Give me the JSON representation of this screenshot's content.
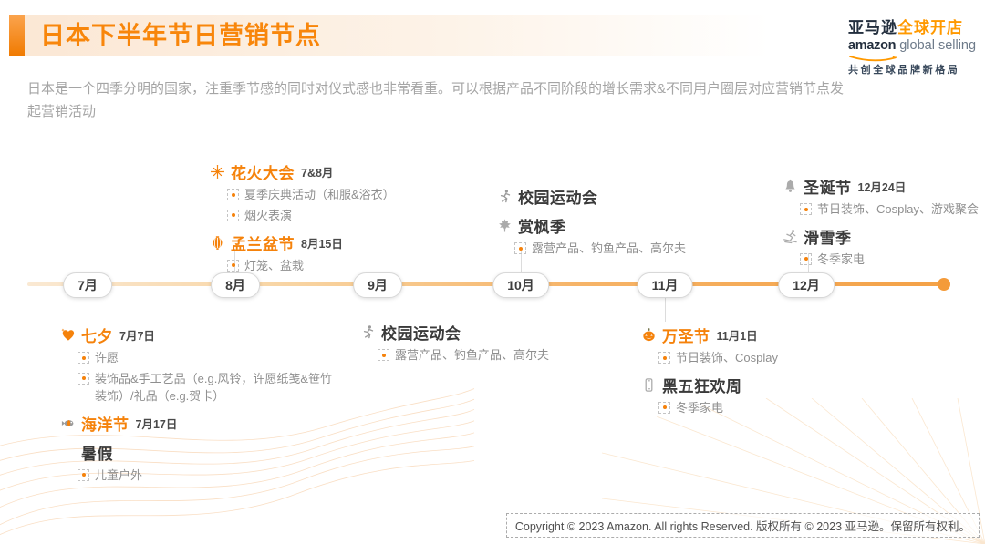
{
  "header": {
    "title": "日本下半年节日营销节点",
    "subtitle": "日本是一个四季分明的国家，注重季节感的同时对仪式感也非常看重。可以根据产品不同阶段的增长需求&不同用户圈层对应营销节点发起营销活动"
  },
  "logo": {
    "cn_dark": "亚马逊",
    "cn_orange": "全球开店",
    "en_bold": "amazon",
    "en_light": "global selling",
    "slogan": "共创全球品牌新格局",
    "smile_icon": "amazon-smile-icon"
  },
  "timeline": {
    "months": [
      "7月",
      "8月",
      "9月",
      "10月",
      "11月",
      "12月"
    ],
    "end_icon": "timeline-end-dot"
  },
  "events_above": [
    {
      "anchor_month": "8月",
      "events": [
        {
          "name": "花火大会",
          "date": "7&8月",
          "style": "orange",
          "icon": "fireworks-icon",
          "items": [
            "夏季庆典活动（和服&浴衣）",
            "烟火表演"
          ]
        },
        {
          "name": "孟兰盆节",
          "date": "8月15日",
          "style": "orange",
          "icon": "lantern-icon",
          "items": [
            "灯笼、盆栽"
          ]
        }
      ]
    },
    {
      "anchor_month": "10月",
      "events": [
        {
          "name": "校园运动会",
          "date": "",
          "style": "dark",
          "icon": "runner-icon",
          "items": []
        },
        {
          "name": "赏枫季",
          "date": "",
          "style": "dark",
          "icon": "maple-leaf-icon",
          "items": [
            "露营产品、钓鱼产品、高尔夫"
          ]
        }
      ]
    },
    {
      "anchor_month": "12月",
      "events": [
        {
          "name": "圣诞节",
          "date": "12月24日",
          "style": "dark",
          "icon": "bell-icon",
          "items": [
            "节日装饰、Cosplay、游戏聚会"
          ]
        },
        {
          "name": "滑雪季",
          "date": "",
          "style": "dark",
          "icon": "skier-icon",
          "items": [
            "冬季家电"
          ]
        }
      ]
    }
  ],
  "events_below": [
    {
      "anchor_month": "7月",
      "events": [
        {
          "name": "七夕",
          "date": "7月7日",
          "style": "orange",
          "icon": "heart-icon",
          "items": [
            "许愿",
            "装饰品&手工艺品（e.g.风铃，许愿纸笺&笹竹装饰）/礼品（e.g.贺卡）"
          ]
        },
        {
          "name": "海洋节",
          "date": "7月17日",
          "style": "orange",
          "icon": "fish-icon",
          "items": []
        },
        {
          "name": "暑假",
          "date": "",
          "style": "dark",
          "icon": "",
          "items": [
            "儿童户外"
          ]
        }
      ]
    },
    {
      "anchor_month": "9月",
      "events": [
        {
          "name": "校园运动会",
          "date": "",
          "style": "dark",
          "icon": "runner-icon",
          "items": [
            "露营产品、钓鱼产品、高尔夫"
          ]
        }
      ]
    },
    {
      "anchor_month": "11月",
      "events": [
        {
          "name": "万圣节",
          "date": "11月1日",
          "style": "orange",
          "icon": "pumpkin-icon",
          "items": [
            "节日装饰、Cosplay"
          ]
        },
        {
          "name": "黑五狂欢周",
          "date": "",
          "style": "dark",
          "icon": "smartphone-icon",
          "items": [
            "冬季家电"
          ]
        }
      ]
    }
  ],
  "footer": {
    "copyright": "Copyright © 2023 Amazon.  All rights Reserved. 版权所有 © 2023 亚马逊。保留所有权利。"
  },
  "colors": {
    "accent_orange": "#F5820B",
    "amazon_orange": "#FF9900",
    "amazon_navy": "#232F3E",
    "title_orange": "#F8860B",
    "subtitle_gray": "#A5A5A5",
    "event_dark": "#3A3A3A",
    "item_gray": "#8F8F8F",
    "timeline_end": "#F49B3A"
  }
}
